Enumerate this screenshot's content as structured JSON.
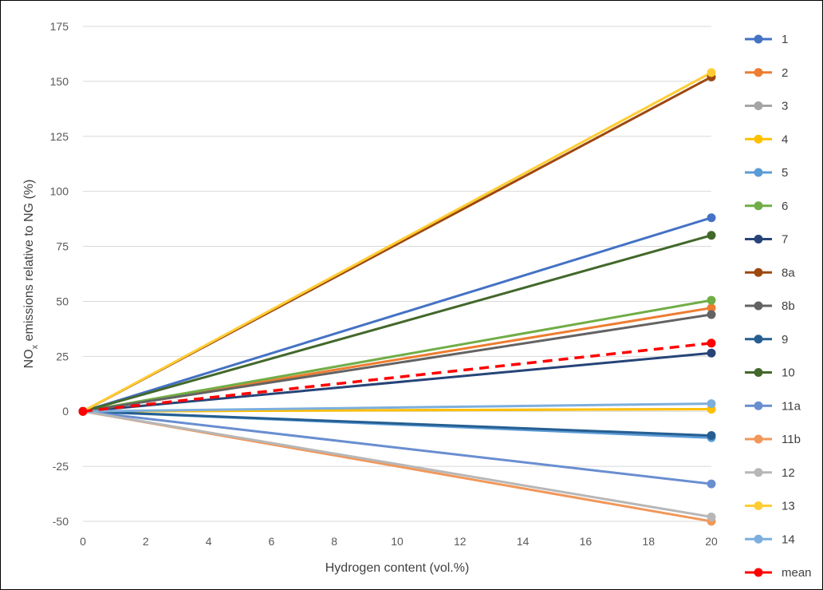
{
  "chart_data": {
    "type": "line",
    "title": "",
    "xlabel": "Hydrogen content (vol.%)",
    "ylabel_parts": [
      "NO",
      "x",
      " emissions relative to NG (%)"
    ],
    "xlim": [
      0,
      20
    ],
    "ylim": [
      -50,
      175
    ],
    "xticks": [
      0,
      2,
      4,
      6,
      8,
      10,
      12,
      14,
      16,
      18,
      20
    ],
    "yticks": [
      -50,
      -25,
      0,
      25,
      50,
      75,
      100,
      125,
      150,
      175
    ],
    "grid": "horizontal",
    "legend_position": "right",
    "x": [
      0,
      20
    ],
    "series": [
      {
        "name": "1",
        "color": "#4472C4",
        "values": [
          0,
          88
        ]
      },
      {
        "name": "2",
        "color": "#ED7D31",
        "values": [
          0,
          47
        ]
      },
      {
        "name": "3",
        "color": "#A5A5A5",
        "values": [
          0,
          1
        ]
      },
      {
        "name": "4",
        "color": "#FFC000",
        "values": [
          0,
          1
        ]
      },
      {
        "name": "5",
        "color": "#5B9BD5",
        "values": [
          0,
          -12
        ]
      },
      {
        "name": "6",
        "color": "#70AD47",
        "values": [
          0,
          50.5
        ]
      },
      {
        "name": "7",
        "color": "#264478",
        "values": [
          0,
          26.5
        ]
      },
      {
        "name": "8a",
        "color": "#9E480E",
        "values": [
          0,
          152
        ]
      },
      {
        "name": "8b",
        "color": "#636363",
        "values": [
          0,
          44
        ]
      },
      {
        "name": "9",
        "color": "#255E91",
        "values": [
          0,
          -11
        ]
      },
      {
        "name": "10",
        "color": "#43682B",
        "values": [
          0,
          80
        ]
      },
      {
        "name": "11a",
        "color": "#698ED0",
        "values": [
          0,
          -33
        ]
      },
      {
        "name": "11b",
        "color": "#F1975A",
        "values": [
          0,
          -50
        ]
      },
      {
        "name": "12",
        "color": "#B7B7B7",
        "values": [
          0,
          -48
        ]
      },
      {
        "name": "13",
        "color": "#FFCD33",
        "values": [
          0,
          154
        ]
      },
      {
        "name": "14",
        "color": "#7CAFDD",
        "values": [
          0,
          3.5
        ]
      },
      {
        "name": "mean",
        "color": "#FF0000",
        "values": [
          0,
          31
        ],
        "dashed": true
      }
    ]
  }
}
